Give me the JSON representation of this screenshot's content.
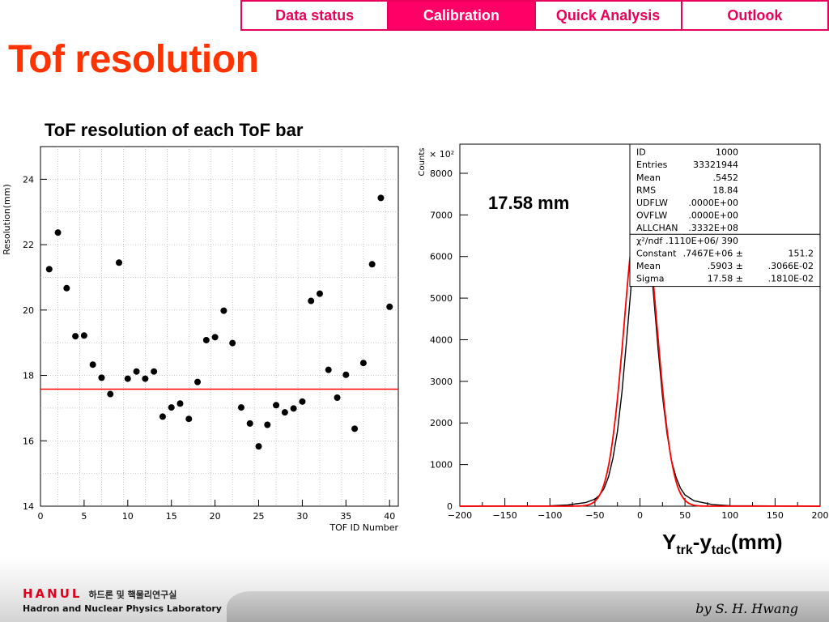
{
  "nav": {
    "tabs": [
      {
        "label": "Data status",
        "active": false
      },
      {
        "label": "Calibration",
        "active": true
      },
      {
        "label": "Quick Analysis",
        "active": false
      },
      {
        "label": "Outlook",
        "active": false
      }
    ]
  },
  "page": {
    "title": "Tof resolution",
    "left_heading": "ToF resolution of each ToF bar",
    "highlight": "17.58 mm",
    "x_unit": {
      "main": "Y",
      "sub1": "trk",
      "dash": "-y",
      "sub2": "tdc",
      "unit": "(mm)"
    }
  },
  "stats_box": {
    "rows": [
      [
        "ID",
        "1000",
        ""
      ],
      [
        "Entries",
        "33321944",
        ""
      ],
      [
        "Mean",
        ".5452",
        ""
      ],
      [
        "RMS",
        "18.84",
        ""
      ],
      [
        "UDFLW",
        ".0000E+00",
        ""
      ],
      [
        "OVFLW",
        ".0000E+00",
        ""
      ],
      [
        "ALLCHAN",
        ".3332E+08",
        ""
      ],
      [
        "χ²/ndf",
        ".1110E+06/   390",
        ""
      ],
      [
        "Constant",
        ".7467E+06 ±",
        "151.2"
      ],
      [
        "Mean",
        ".5903 ±",
        ".3066E-02"
      ],
      [
        "Sigma",
        "17.58 ±",
        ".1810E-02"
      ]
    ]
  },
  "footer": {
    "logo_mark": "HANUL",
    "logo_korean": "하드론 및 핵물리연구실",
    "lab_name": "Hadron and Nuclear Physics Laboratory",
    "author": "by S. H. Hwang"
  },
  "colors": {
    "accent": "#ff0066",
    "title": "#ff3300",
    "fit": "#ff0000"
  },
  "chart_data": [
    {
      "type": "scatter",
      "title": "ToF resolution of each ToF bar",
      "xlabel": "TOF ID Number",
      "ylabel": "Resolution(mm)",
      "xlim": [
        0,
        41
      ],
      "ylim": [
        14,
        25
      ],
      "xticks": [
        "0",
        "5",
        "10",
        "15",
        "20",
        "25",
        "30",
        "35",
        "40"
      ],
      "yticks": [
        "14",
        "16",
        "18",
        "20",
        "22",
        "24"
      ],
      "grid": true,
      "hline": 17.58,
      "x": [
        1,
        2,
        3,
        4,
        5,
        6,
        7,
        8,
        9,
        10,
        11,
        12,
        13,
        14,
        15,
        16,
        17,
        18,
        19,
        20,
        21,
        22,
        23,
        24,
        25,
        26,
        27,
        28,
        29,
        30,
        31,
        32,
        33,
        34,
        35,
        36,
        37,
        38,
        39,
        40
      ],
      "y": [
        21.25,
        22.37,
        20.67,
        19.2,
        19.22,
        18.33,
        17.93,
        17.43,
        21.45,
        17.9,
        18.12,
        17.9,
        18.12,
        16.74,
        17.02,
        17.14,
        16.67,
        17.8,
        19.08,
        19.17,
        19.98,
        18.99,
        17.02,
        16.53,
        15.83,
        16.49,
        17.09,
        16.87,
        16.99,
        17.2,
        20.28,
        20.5,
        18.17,
        17.32,
        18.02,
        16.37,
        18.38,
        21.4,
        23.43,
        20.1
      ]
    },
    {
      "type": "line",
      "xlabel": "",
      "ylabel": "Counts",
      "yscale_label": "× 10²",
      "xlim": [
        -200,
        200
      ],
      "ylim": [
        0,
        8700
      ],
      "xticks": [
        "−200",
        "−150",
        "−100",
        "−50",
        "0",
        "50",
        "100",
        "150",
        "200"
      ],
      "yticks": [
        "0",
        "1000",
        "2000",
        "3000",
        "4000",
        "5000",
        "6000",
        "7000",
        "8000"
      ],
      "series": [
        {
          "kind": "histogram",
          "x": [
            -200,
            -100,
            -80,
            -60,
            -50,
            -45,
            -40,
            -35,
            -30,
            -25,
            -20,
            -15,
            -10,
            -5,
            0,
            5,
            10,
            15,
            20,
            25,
            30,
            35,
            40,
            45,
            50,
            60,
            80,
            100,
            200
          ],
          "y": [
            0,
            8,
            30,
            90,
            170,
            260,
            420,
            700,
            1150,
            1800,
            2750,
            3950,
            5250,
            6500,
            7400,
            7300,
            6400,
            5100,
            3800,
            2650,
            1750,
            1100,
            700,
            430,
            270,
            130,
            40,
            10,
            0
          ]
        },
        {
          "kind": "gaussian-fit",
          "constant": 7467,
          "mean": 0.5903,
          "sigma": 17.58
        }
      ]
    }
  ]
}
